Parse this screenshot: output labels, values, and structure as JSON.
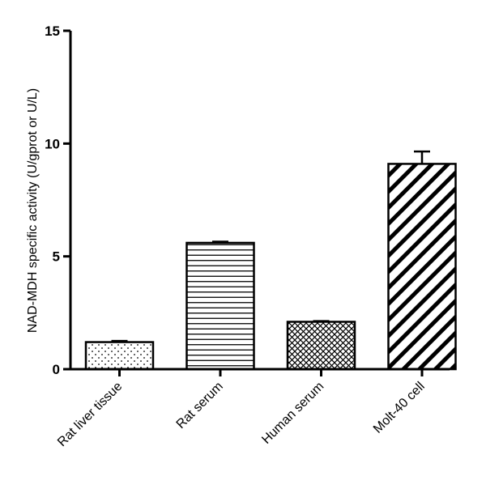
{
  "chart_data": {
    "type": "bar",
    "title": "",
    "xlabel": "",
    "ylabel": "NAD-MDH specific activity (U/gprot or U/L)",
    "ylim": [
      0,
      15
    ],
    "yticks": [
      0,
      5,
      10,
      15
    ],
    "categories": [
      "Rat liver tissue",
      "Rat serum",
      "Human serum",
      "Molt-40 cell"
    ],
    "values": [
      1.2,
      5.6,
      2.1,
      9.1
    ],
    "errors": [
      0.05,
      0.05,
      0.03,
      0.55
    ],
    "patterns": [
      "dots",
      "horizontal-lines",
      "crosshatch",
      "diagonal-stripes"
    ],
    "grid": false,
    "legend": "none"
  }
}
